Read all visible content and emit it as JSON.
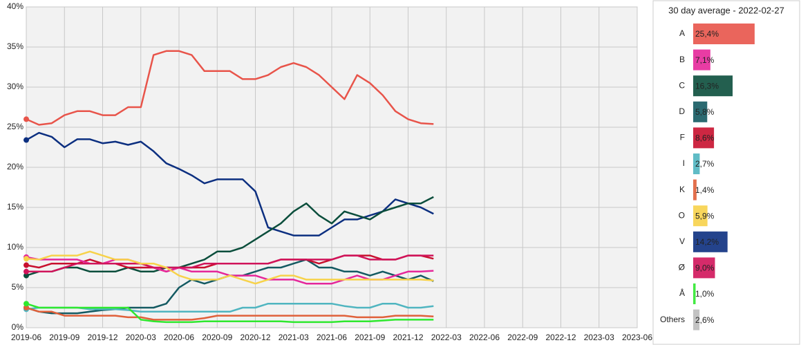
{
  "chart_data": [
    {
      "type": "line",
      "x": [
        "2019-06",
        "2019-07",
        "2019-08",
        "2019-09",
        "2019-10",
        "2019-11",
        "2019-12",
        "2020-01",
        "2020-02",
        "2020-03",
        "2020-04",
        "2020-05",
        "2020-06",
        "2020-07",
        "2020-08",
        "2020-09",
        "2020-10",
        "2020-11",
        "2020-12",
        "2021-01",
        "2021-02",
        "2021-03",
        "2021-04",
        "2021-05",
        "2021-06",
        "2021-07",
        "2021-08",
        "2021-09",
        "2021-10",
        "2021-11",
        "2021-12",
        "2022-01",
        "2022-02"
      ],
      "xlim": [
        "2019-06",
        "2023-06"
      ],
      "xticks": [
        "2019-06",
        "2019-09",
        "2019-12",
        "2020-03",
        "2020-06",
        "2020-09",
        "2020-12",
        "2021-03",
        "2021-06",
        "2021-09",
        "2021-12",
        "2022-03",
        "2022-06",
        "2022-09",
        "2022-12",
        "2023-03",
        "2023-06"
      ],
      "ylim": [
        0,
        40
      ],
      "yticks": [
        {
          "value": 0,
          "label": "0%"
        },
        {
          "value": 5,
          "label": "5%"
        },
        {
          "value": 10,
          "label": "10%"
        },
        {
          "value": 15,
          "label": "15%"
        },
        {
          "value": 20,
          "label": "20%"
        },
        {
          "value": 25,
          "label": "25%"
        },
        {
          "value": 30,
          "label": "30%"
        },
        {
          "value": 35,
          "label": "35%"
        },
        {
          "value": 40,
          "label": "40%"
        }
      ],
      "grid": true,
      "series": [
        {
          "name": "A",
          "color": "#e8544a",
          "values": [
            26,
            25.3,
            25.5,
            26.5,
            27,
            27,
            26.5,
            26.5,
            27.5,
            27.5,
            34,
            34.5,
            34.5,
            34,
            32,
            32,
            32,
            31,
            31,
            31.5,
            32.5,
            33,
            32.5,
            31.5,
            30,
            28.5,
            31.5,
            30.5,
            29,
            27,
            26,
            25.5,
            25.4
          ]
        },
        {
          "name": "V",
          "color": "#0c2f80",
          "values": [
            23.4,
            24.3,
            23.8,
            22.5,
            23.5,
            23.5,
            23,
            23.2,
            22.8,
            23.2,
            22,
            20.5,
            19.8,
            19,
            18,
            18.5,
            18.5,
            18.5,
            17,
            12.5,
            12,
            11.5,
            11.5,
            11.5,
            12.5,
            13.5,
            13.5,
            14,
            14.5,
            16,
            15.5,
            15,
            14.2
          ]
        },
        {
          "name": "C",
          "color": "#0b4e3c",
          "values": [
            6.5,
            7,
            7,
            7.5,
            7.5,
            7,
            7,
            7,
            7.5,
            7,
            7,
            7.5,
            7.5,
            8,
            8.5,
            9.5,
            9.5,
            10,
            11,
            12,
            13,
            14.5,
            15.5,
            14,
            13,
            14.5,
            14,
            13.5,
            14.5,
            15,
            15.5,
            15.5,
            16.3
          ]
        },
        {
          "name": "D",
          "color": "#145a62",
          "values": [
            2.5,
            2,
            1.8,
            1.8,
            1.8,
            2,
            2.2,
            2.3,
            2.5,
            2.5,
            2.5,
            3,
            5,
            6,
            5.5,
            6,
            6.5,
            6.5,
            7,
            7.5,
            7.5,
            8,
            8.5,
            7.5,
            7.5,
            7,
            7,
            6.5,
            7,
            6.5,
            6,
            6.5,
            5.8
          ]
        },
        {
          "name": "F",
          "color": "#c8102e",
          "values": [
            7.8,
            7.5,
            8,
            8,
            8,
            8.5,
            8,
            8,
            7.5,
            7.5,
            7.5,
            7,
            7.5,
            7.5,
            7.5,
            8,
            8,
            8,
            8,
            8,
            8.5,
            8.5,
            8.5,
            8,
            8.5,
            9,
            9,
            9,
            8.5,
            8.5,
            9,
            9,
            8.6
          ]
        },
        {
          "name": "B",
          "color": "#e5279a",
          "values": [
            8.8,
            8.5,
            8.5,
            8.5,
            8.5,
            8,
            8,
            8.5,
            8.5,
            8,
            7.5,
            7,
            7.5,
            7,
            7,
            7,
            6.5,
            6.5,
            6.5,
            6,
            6,
            6,
            5.5,
            5.5,
            5.5,
            6,
            6.5,
            6,
            6,
            6.5,
            7,
            7,
            7.1
          ]
        },
        {
          "name": "Ø",
          "color": "#d0145a",
          "values": [
            7,
            7,
            7,
            7.5,
            8,
            8,
            8,
            8,
            8,
            8,
            7.5,
            7.5,
            7.5,
            7.5,
            8,
            8,
            8,
            8,
            8,
            8,
            8.5,
            8.5,
            8.5,
            8.5,
            8.5,
            9,
            9,
            8.5,
            8.5,
            8.5,
            9,
            9,
            9.0
          ]
        },
        {
          "name": "O",
          "color": "#f7d24a",
          "values": [
            8.6,
            8.5,
            9,
            9,
            9,
            9.5,
            9,
            8.5,
            8.5,
            8,
            8,
            7.5,
            6.5,
            6,
            6,
            6,
            6.5,
            6,
            5.5,
            6,
            6.5,
            6.5,
            6,
            6,
            6,
            6,
            6,
            6,
            6,
            6,
            6,
            6,
            5.9
          ]
        },
        {
          "name": "I",
          "color": "#4fb5c0",
          "values": [
            2.3,
            2.5,
            2.5,
            2.5,
            2.5,
            2.3,
            2.3,
            2.3,
            2.2,
            2,
            2,
            2,
            2,
            2,
            2,
            2,
            2,
            2.5,
            2.5,
            3,
            3,
            3,
            3,
            3,
            3,
            2.7,
            2.5,
            2.5,
            3,
            3,
            2.5,
            2.5,
            2.7
          ]
        },
        {
          "name": "K",
          "color": "#e0603a",
          "values": [
            2.5,
            2,
            2,
            1.5,
            1.5,
            1.5,
            1.5,
            1.5,
            1.3,
            1.3,
            1,
            1,
            1,
            1,
            1.2,
            1.5,
            1.5,
            1.5,
            1.5,
            1.5,
            1.5,
            1.5,
            1.5,
            1.5,
            1.5,
            1.5,
            1.3,
            1.3,
            1.3,
            1.5,
            1.5,
            1.5,
            1.4
          ]
        },
        {
          "name": "Å",
          "color": "#2ee82e",
          "values": [
            3,
            2.5,
            2.5,
            2.5,
            2.5,
            2.5,
            2.5,
            2.5,
            2.5,
            1,
            0.8,
            0.7,
            0.7,
            0.7,
            0.8,
            0.8,
            0.8,
            0.8,
            0.8,
            0.8,
            0.8,
            0.7,
            0.7,
            0.7,
            0.7,
            0.8,
            0.8,
            0.8,
            0.9,
            1,
            1,
            1,
            1.0
          ]
        }
      ]
    },
    {
      "type": "hbar",
      "title": "30 day average - 2022-02-27",
      "categories": [
        "A",
        "B",
        "C",
        "D",
        "F",
        "I",
        "K",
        "O",
        "V",
        "Ø",
        "Å",
        "Others"
      ],
      "values": [
        25.4,
        7.1,
        16.3,
        5.8,
        8.6,
        2.7,
        1.4,
        5.9,
        14.2,
        9.0,
        1.0,
        2.6
      ],
      "value_labels": [
        "25,4%",
        "7,1%",
        "16,3%",
        "5,8%",
        "8,6%",
        "2,7%",
        "1,4%",
        "5,9%",
        "14,2%",
        "9,0%",
        "1,0%",
        "2,6%"
      ],
      "colors": [
        "#e8544a",
        "#e5279a",
        "#0b4e3c",
        "#145a62",
        "#c8102e",
        "#4fb5c0",
        "#e0603a",
        "#f7d24a",
        "#0c2f80",
        "#d0145a",
        "#2ee82e",
        "#bdbdbd"
      ]
    }
  ]
}
